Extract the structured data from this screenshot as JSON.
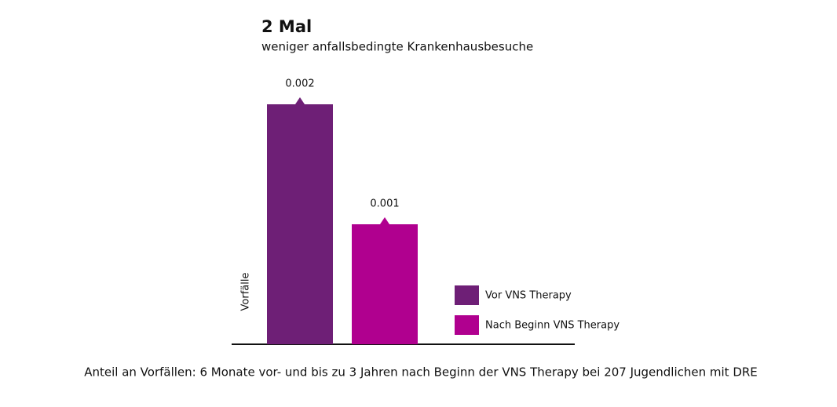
{
  "chart_data": {
    "type": "bar",
    "title": "2 Mal",
    "subtitle": "weniger anfallsbedingte Krankenhausbesuche",
    "y_label": "Vorfälle",
    "caption": "Anteil an Vorfällen: 6 Monate vor- und bis zu 3 Jahren nach Beginn der VNS Therapy bei 207 Jugendlichen mit DRE",
    "series": [
      {
        "name": "Vor VNS Therapy",
        "color": "#6e1f76",
        "values": [
          0.002
        ]
      },
      {
        "name": "Nach Beginn VNS Therapy",
        "color": "#b0008f",
        "values": [
          0.001
        ]
      }
    ],
    "ylim": [
      0,
      0.0025
    ]
  }
}
